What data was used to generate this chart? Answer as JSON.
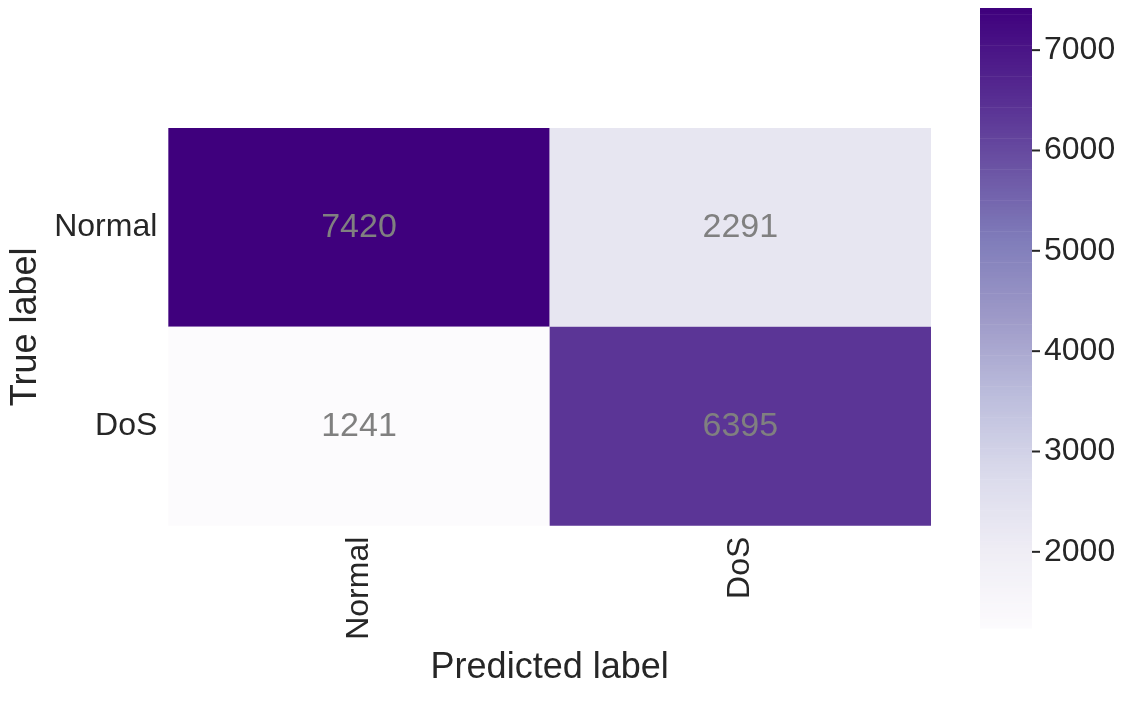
{
  "chart_data": {
    "type": "heatmap",
    "xlabel": "Predicted label",
    "ylabel": "True label",
    "categories": [
      "Normal",
      "DoS"
    ],
    "y_categories": [
      "Normal",
      "DoS"
    ],
    "cells": [
      [
        7420,
        2291
      ],
      [
        1241,
        6395
      ]
    ],
    "data_labels": true,
    "clim": [
      1241,
      7420
    ],
    "cticks": [
      2000,
      3000,
      4000,
      5000,
      6000,
      7000
    ]
  }
}
